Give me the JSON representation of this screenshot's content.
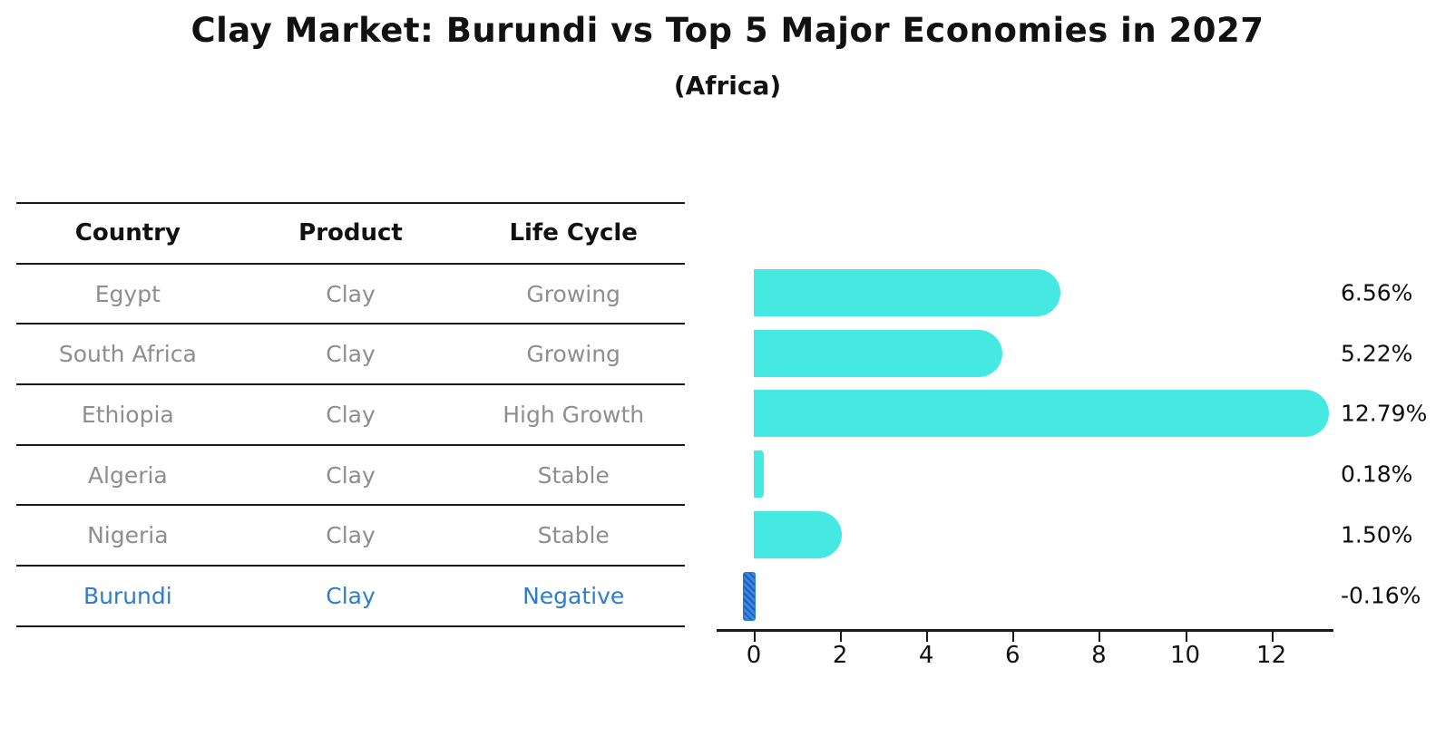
{
  "title": "Clay Market: Burundi vs Top 5 Major Economies in 2027",
  "subtitle": "(Africa)",
  "table": {
    "headers": [
      "Country",
      "Product",
      "Life Cycle"
    ],
    "rows": [
      {
        "cells": [
          "Egypt",
          "Clay",
          "Growing"
        ],
        "highlight": false
      },
      {
        "cells": [
          "South Africa",
          "Clay",
          "Growing"
        ],
        "highlight": false
      },
      {
        "cells": [
          "Ethiopia",
          "Clay",
          "High Growth"
        ],
        "highlight": false
      },
      {
        "cells": [
          "Algeria",
          "Clay",
          "Stable"
        ],
        "highlight": false
      },
      {
        "cells": [
          "Nigeria",
          "Clay",
          "Stable"
        ],
        "highlight": false
      },
      {
        "cells": [
          "Burundi",
          "Clay",
          "Negative"
        ],
        "highlight": true
      }
    ]
  },
  "chart_data": {
    "type": "bar",
    "orientation": "horizontal",
    "categories": [
      "Egypt",
      "South Africa",
      "Ethiopia",
      "Algeria",
      "Nigeria",
      "Burundi"
    ],
    "values": [
      6.56,
      5.22,
      12.79,
      0.18,
      1.5,
      -0.16
    ],
    "value_labels": [
      "6.56%",
      "5.22%",
      "12.79%",
      "0.18%",
      "1.50%",
      "-0.16%"
    ],
    "highlight_index": 5,
    "xticks": [
      0,
      2,
      4,
      6,
      8,
      10,
      12
    ],
    "xlim": [
      -0.86,
      13.42
    ],
    "grid": false,
    "legend": "none",
    "bar_color": "#46e8e2",
    "highlight_color": "#2979d1",
    "title": "Clay Market: Burundi vs Top 5 Major Economies in 2027",
    "subtitle": "(Africa)"
  },
  "colors": {
    "bar_cyan": "#46e8e2",
    "highlight_blue": "#2979d1",
    "table_text_gray": "#8e8e8e",
    "text_black": "#111111"
  }
}
